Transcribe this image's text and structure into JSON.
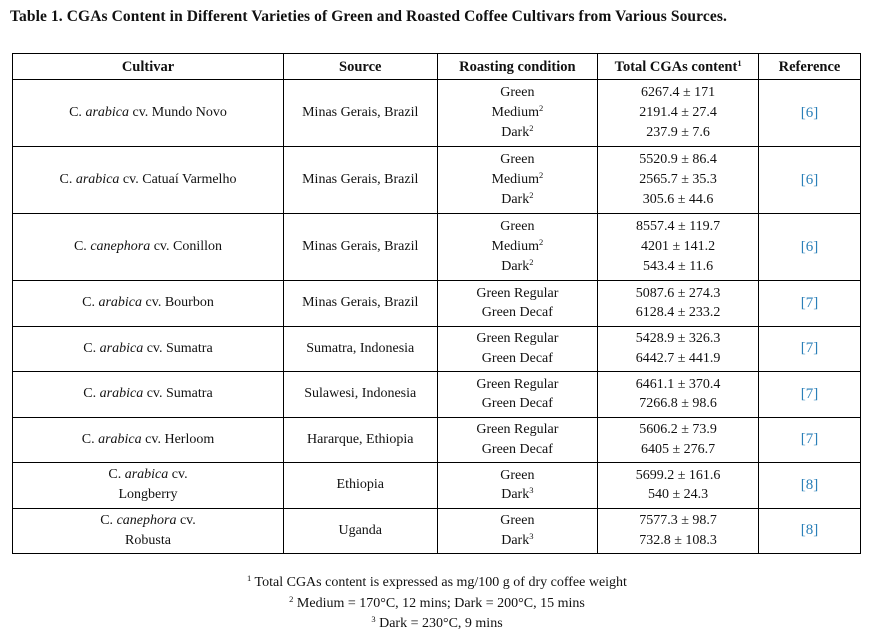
{
  "title": "Table 1. CGAs Content in Different Varieties of Green and Roasted Coffee Cultivars from Various Sources.",
  "headers": {
    "cultivar": "Cultivar",
    "source": "Source",
    "roasting": "Roasting condition",
    "total": "Total CGAs content",
    "total_sup": "1",
    "reference": "Reference"
  },
  "rows": [
    {
      "cultivar": [
        "C. ",
        "arabica",
        " cv. Mundo Novo"
      ],
      "source": "Minas Gerais, Brazil",
      "roasting": [
        [
          "Green",
          ""
        ],
        [
          "Medium",
          "2"
        ],
        [
          "Dark",
          "2"
        ]
      ],
      "total": [
        "6267.4 ± 171",
        "2191.4 ± 27.4",
        "237.9 ± 7.6"
      ],
      "reference": "[6]"
    },
    {
      "cultivar": [
        "C. ",
        "arabica",
        " cv. Catuaí Varmelho"
      ],
      "source": "Minas Gerais, Brazil",
      "roasting": [
        [
          "Green",
          ""
        ],
        [
          "Medium",
          "2"
        ],
        [
          "Dark",
          "2"
        ]
      ],
      "total": [
        "5520.9 ± 86.4",
        "2565.7 ± 35.3",
        "305.6 ± 44.6"
      ],
      "reference": "[6]"
    },
    {
      "cultivar": [
        "C. ",
        "canephora",
        " cv. Conillon"
      ],
      "source": "Minas Gerais, Brazil",
      "roasting": [
        [
          "Green",
          ""
        ],
        [
          "Medium",
          "2"
        ],
        [
          "Dark",
          "2"
        ]
      ],
      "total": [
        "8557.4 ± 119.7",
        "4201 ± 141.2",
        "543.4 ± 11.6"
      ],
      "reference": "[6]"
    },
    {
      "cultivar": [
        "C. ",
        "arabica",
        " cv. Bourbon"
      ],
      "source": "Minas Gerais, Brazil",
      "roasting": [
        [
          "Green Regular",
          ""
        ],
        [
          "Green Decaf",
          ""
        ]
      ],
      "total": [
        "5087.6 ± 274.3",
        "6128.4 ± 233.2"
      ],
      "reference": "[7]"
    },
    {
      "cultivar": [
        "C. ",
        "arabica",
        " cv. Sumatra"
      ],
      "source": "Sumatra, Indonesia",
      "roasting": [
        [
          "Green Regular",
          ""
        ],
        [
          "Green Decaf",
          ""
        ]
      ],
      "total": [
        "5428.9 ± 326.3",
        "6442.7 ± 441.9"
      ],
      "reference": "[7]"
    },
    {
      "cultivar": [
        "C. ",
        "arabica",
        " cv. Sumatra"
      ],
      "source": "Sulawesi, Indonesia",
      "roasting": [
        [
          "Green Regular",
          ""
        ],
        [
          "Green Decaf",
          ""
        ]
      ],
      "total": [
        "6461.1 ± 370.4",
        "7266.8 ± 98.6"
      ],
      "reference": "[7]"
    },
    {
      "cultivar": [
        "C. ",
        "arabica",
        " cv. Herloom"
      ],
      "source": "Hararque, Ethiopia",
      "roasting": [
        [
          "Green Regular",
          ""
        ],
        [
          "Green Decaf",
          ""
        ]
      ],
      "total": [
        "5606.2 ± 73.9",
        "6405 ± 276.7"
      ],
      "reference": "[7]"
    },
    {
      "cultivar": [
        "C. ",
        "arabica",
        " cv."
      ],
      "cultivar_line2": "Longberry",
      "source": "Ethiopia",
      "roasting": [
        [
          "Green",
          ""
        ],
        [
          "Dark",
          "3"
        ]
      ],
      "total": [
        "5699.2 ± 161.6",
        "540 ± 24.3"
      ],
      "reference": "[8]"
    },
    {
      "cultivar": [
        "C. ",
        "canephora",
        " cv."
      ],
      "cultivar_line2": "Robusta",
      "source": "Uganda",
      "roasting": [
        [
          "Green",
          ""
        ],
        [
          "Dark",
          "3"
        ]
      ],
      "total": [
        "7577.3 ± 98.7",
        "732.8 ± 108.3"
      ],
      "reference": "[8]"
    }
  ],
  "footnotes": [
    {
      "mark": "1",
      "text": " Total CGAs content is expressed as mg/100 g of dry coffee weight"
    },
    {
      "mark": "2",
      "text": " Medium = 170°C, 12 mins; Dark = 200°C, 15 mins"
    },
    {
      "mark": "3",
      "text": " Dark = 230°C, 9 mins"
    }
  ]
}
